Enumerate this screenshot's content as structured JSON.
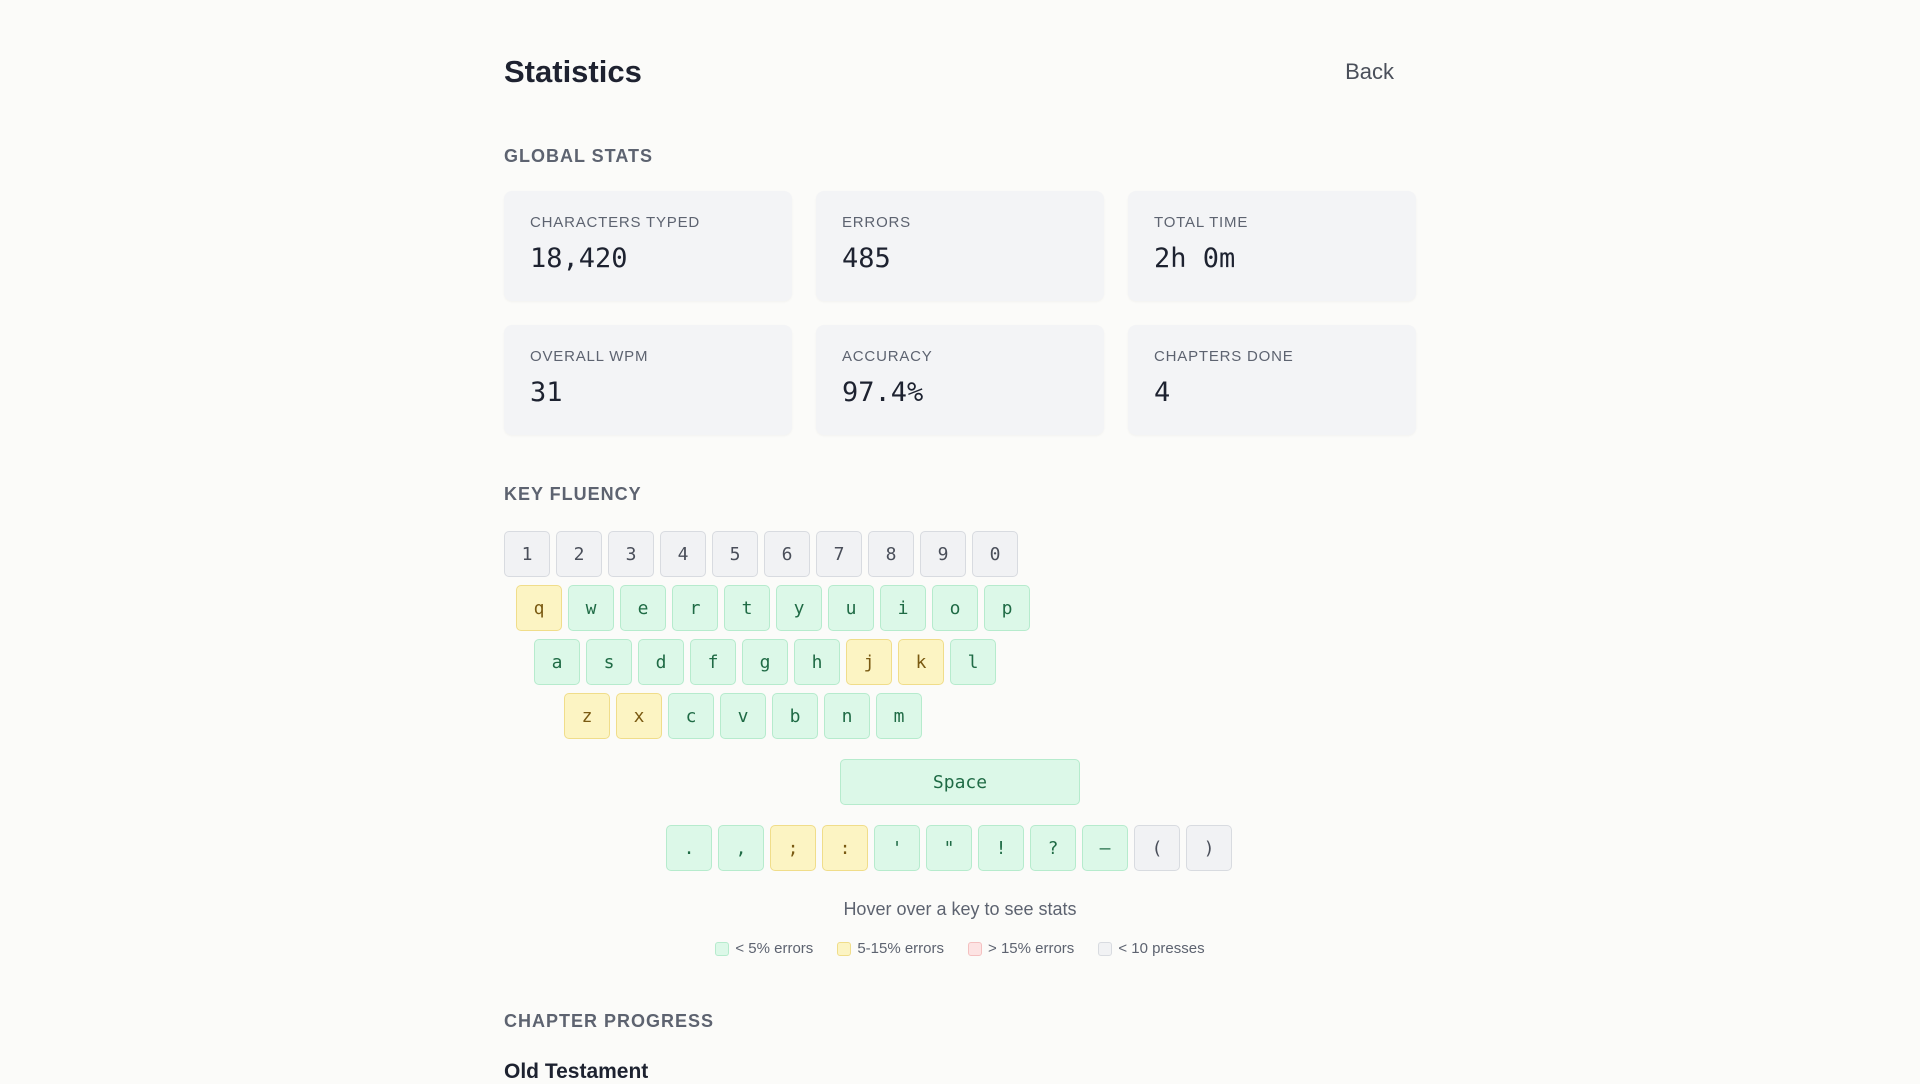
{
  "header": {
    "title": "Statistics",
    "back_label": "Back"
  },
  "global_stats": {
    "heading": "GLOBAL STATS",
    "cards": [
      {
        "label": "CHARACTERS TYPED",
        "value": "18,420"
      },
      {
        "label": "ERRORS",
        "value": "485"
      },
      {
        "label": "TOTAL TIME",
        "value": "2h 0m"
      },
      {
        "label": "OVERALL WPM",
        "value": "31"
      },
      {
        "label": "ACCURACY",
        "value": "97.4%"
      },
      {
        "label": "CHAPTERS DONE",
        "value": "4"
      }
    ]
  },
  "key_fluency": {
    "heading": "KEY FLUENCY",
    "rows": [
      [
        {
          "key": "1",
          "status": "few"
        },
        {
          "key": "2",
          "status": "few"
        },
        {
          "key": "3",
          "status": "few"
        },
        {
          "key": "4",
          "status": "few"
        },
        {
          "key": "5",
          "status": "few"
        },
        {
          "key": "6",
          "status": "few"
        },
        {
          "key": "7",
          "status": "few"
        },
        {
          "key": "8",
          "status": "few"
        },
        {
          "key": "9",
          "status": "few"
        },
        {
          "key": "0",
          "status": "few"
        }
      ],
      [
        {
          "key": "q",
          "status": "warn"
        },
        {
          "key": "w",
          "status": "good"
        },
        {
          "key": "e",
          "status": "good"
        },
        {
          "key": "r",
          "status": "good"
        },
        {
          "key": "t",
          "status": "good"
        },
        {
          "key": "y",
          "status": "good"
        },
        {
          "key": "u",
          "status": "good"
        },
        {
          "key": "i",
          "status": "good"
        },
        {
          "key": "o",
          "status": "good"
        },
        {
          "key": "p",
          "status": "good"
        }
      ],
      [
        {
          "key": "a",
          "status": "good"
        },
        {
          "key": "s",
          "status": "good"
        },
        {
          "key": "d",
          "status": "good"
        },
        {
          "key": "f",
          "status": "good"
        },
        {
          "key": "g",
          "status": "good"
        },
        {
          "key": "h",
          "status": "good"
        },
        {
          "key": "j",
          "status": "warn"
        },
        {
          "key": "k",
          "status": "warn"
        },
        {
          "key": "l",
          "status": "good"
        }
      ],
      [
        {
          "key": "z",
          "status": "warn"
        },
        {
          "key": "x",
          "status": "warn"
        },
        {
          "key": "c",
          "status": "good"
        },
        {
          "key": "v",
          "status": "good"
        },
        {
          "key": "b",
          "status": "good"
        },
        {
          "key": "n",
          "status": "good"
        },
        {
          "key": "m",
          "status": "good"
        }
      ]
    ],
    "space": {
      "key": "Space",
      "status": "good"
    },
    "punctuation": [
      {
        "key": ".",
        "status": "good"
      },
      {
        "key": ",",
        "status": "good"
      },
      {
        "key": ";",
        "status": "warn"
      },
      {
        "key": ":",
        "status": "warn"
      },
      {
        "key": "'",
        "status": "good"
      },
      {
        "key": "\"",
        "status": "good"
      },
      {
        "key": "!",
        "status": "good"
      },
      {
        "key": "?",
        "status": "good"
      },
      {
        "key": "–",
        "status": "good"
      },
      {
        "key": "(",
        "status": "few"
      },
      {
        "key": ")",
        "status": "few"
      }
    ],
    "hint": "Hover over a key to see stats",
    "legend": [
      {
        "label": "< 5% errors",
        "color": "#dcf8e8",
        "border": "#b6ebcd"
      },
      {
        "label": "5-15% errors",
        "color": "#fcf4c3",
        "border": "#f0dd8a"
      },
      {
        "label": "> 15% errors",
        "color": "#fde3e3",
        "border": "#f4c0c0"
      },
      {
        "label": "< 10 presses",
        "color": "#f1f2f4",
        "border": "#d8dbe0"
      }
    ]
  },
  "chapter_progress": {
    "heading": "CHAPTER PROGRESS",
    "group_title": "Old Testament"
  }
}
